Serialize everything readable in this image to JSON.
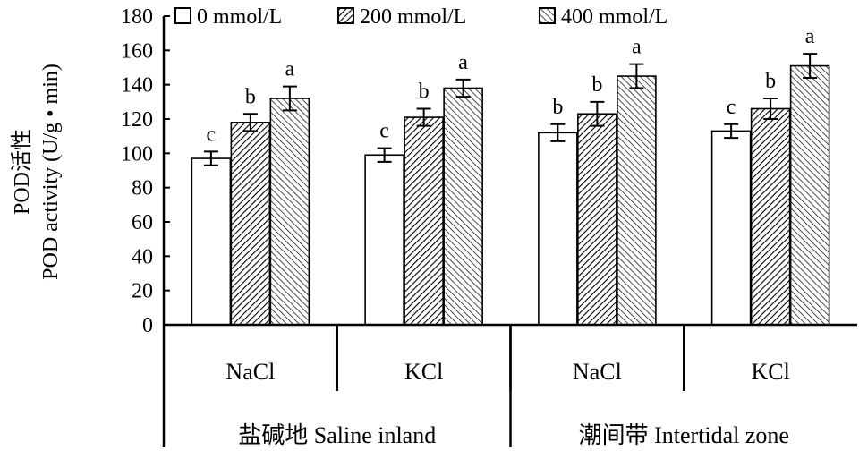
{
  "chart_data": {
    "type": "bar",
    "ylabel": "POD活性",
    "ylabel_en": "POD activity (U/g • min)",
    "ylim": [
      0,
      180
    ],
    "yticks": [
      0,
      20,
      40,
      60,
      80,
      100,
      120,
      140,
      160,
      180
    ],
    "categories": [
      "NaCl",
      "KCl",
      "NaCl",
      "KCl"
    ],
    "groups": [
      "盐碱地 Saline inland",
      "潮间带 Intertidal zone"
    ],
    "group_spans": [
      2,
      2
    ],
    "series": [
      {
        "name": "0 mmol/L",
        "pattern": "none",
        "values": [
          97,
          99,
          112,
          113
        ],
        "errors": [
          4,
          4,
          5,
          4
        ],
        "letters": [
          "c",
          "c",
          "b",
          "c"
        ]
      },
      {
        "name": "200 mmol/L",
        "pattern": "dense-diagonal",
        "values": [
          118,
          121,
          123,
          126
        ],
        "errors": [
          5,
          5,
          7,
          6
        ],
        "letters": [
          "b",
          "b",
          "b",
          "b"
        ]
      },
      {
        "name": "400 mmol/L",
        "pattern": "sparse-diagonal",
        "values": [
          132,
          138,
          145,
          151
        ],
        "errors": [
          7,
          5,
          7,
          7
        ],
        "letters": [
          "a",
          "a",
          "a",
          "a"
        ]
      }
    ],
    "legend_placement": "top",
    "grid": false
  }
}
